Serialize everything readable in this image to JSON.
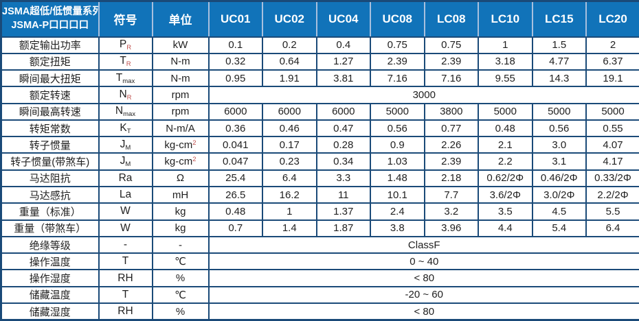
{
  "colors": {
    "header_bg": "#1173b9",
    "header_text": "#ffffff",
    "header_divider": "#a9c0de",
    "grid_border": "#1a4a78",
    "body_text": "#1f1f1f",
    "subscript_red": "#c0504d"
  },
  "table": {
    "header": {
      "series_title_line1": "JSMA超低/低惯量系列",
      "series_title_line2": "JSMA-P口口口口",
      "symbol_col": "符号",
      "unit_col": "单位",
      "models": [
        "UC01",
        "UC02",
        "UC04",
        "UC08",
        "LC08",
        "LC10",
        "LC15",
        "LC20"
      ]
    },
    "rows": [
      {
        "label": "额定输出功率",
        "symbol": {
          "base": "P",
          "sub": "R",
          "sub_red": true
        },
        "unit": "kW",
        "values": [
          "0.1",
          "0.2",
          "0.4",
          "0.75",
          "0.75",
          "1",
          "1.5",
          "2"
        ]
      },
      {
        "label": "额定扭矩",
        "symbol": {
          "base": "T",
          "sub": "R",
          "sub_red": true
        },
        "unit": "N-m",
        "values": [
          "0.32",
          "0.64",
          "1.27",
          "2.39",
          "2.39",
          "3.18",
          "4.77",
          "6.37"
        ]
      },
      {
        "label": "瞬间最大扭矩",
        "symbol": {
          "base": "T",
          "sub": "max"
        },
        "unit": "N-m",
        "values": [
          "0.95",
          "1.91",
          "3.81",
          "7.16",
          "7.16",
          "9.55",
          "14.3",
          "19.1"
        ]
      },
      {
        "label": "额定转速",
        "symbol": {
          "base": "N",
          "sub": "R",
          "sub_red": true
        },
        "unit": "rpm",
        "merged": "3000"
      },
      {
        "label": "瞬间最高转速",
        "symbol": {
          "base": "N",
          "sub": "max"
        },
        "unit": "rpm",
        "values": [
          "6000",
          "6000",
          "6000",
          "5000",
          "3800",
          "5000",
          "5000",
          "5000"
        ]
      },
      {
        "label": "转矩常数",
        "symbol": {
          "base": "K",
          "sub": "T"
        },
        "unit": "N-m/A",
        "values": [
          "0.36",
          "0.46",
          "0.47",
          "0.56",
          "0.77",
          "0.48",
          "0.56",
          "0.55"
        ]
      },
      {
        "label": "转子惯量",
        "symbol": {
          "base": "J",
          "sub": "M"
        },
        "unit": "kg-cm",
        "unit_sup": "2",
        "values": [
          "0.041",
          "0.17",
          "0.28",
          "0.9",
          "2.26",
          "2.1",
          "3.0",
          "4.07"
        ]
      },
      {
        "label": "转子惯量(带煞车)",
        "symbol": {
          "base": "J",
          "sub": "M"
        },
        "unit": "kg-cm",
        "unit_sup": "2",
        "values": [
          "0.047",
          "0.23",
          "0.34",
          "1.03",
          "2.39",
          "2.2",
          "3.1",
          "4.17"
        ]
      },
      {
        "label": "马达阻抗",
        "symbol": {
          "base": "Ra"
        },
        "unit": "Ω",
        "values": [
          "25.4",
          "6.4",
          "3.3",
          "1.48",
          "2.18",
          "0.62/2Φ",
          "0.46/2Φ",
          "0.33/2Φ"
        ]
      },
      {
        "label": "马达感抗",
        "symbol": {
          "base": "La"
        },
        "unit": "mH",
        "values": [
          "26.5",
          "16.2",
          "11",
          "10.1",
          "7.7",
          "3.6/2Φ",
          "3.0/2Φ",
          "2.2/2Φ"
        ]
      },
      {
        "label": "重量（标准）",
        "symbol": {
          "base": "W"
        },
        "unit": "kg",
        "values": [
          "0.48",
          "1",
          "1.37",
          "2.4",
          "3.2",
          "3.5",
          "4.5",
          "5.5"
        ]
      },
      {
        "label": "重量（带煞车）",
        "symbol": {
          "base": "W"
        },
        "unit": "kg",
        "values": [
          "0.7",
          "1.4",
          "1.87",
          "3.8",
          "3.96",
          "4.4",
          "5.4",
          "6.4"
        ]
      },
      {
        "label": "绝缘等级",
        "symbol": {
          "base": "-"
        },
        "unit": "-",
        "merged": "ClassF"
      },
      {
        "label": "操作温度",
        "symbol": {
          "base": "T"
        },
        "unit": "℃",
        "merged": "0 ~ 40"
      },
      {
        "label": "操作湿度",
        "symbol": {
          "base": "RH"
        },
        "unit": "%",
        "merged": "< 80"
      },
      {
        "label": "储藏温度",
        "symbol": {
          "base": "T"
        },
        "unit": "℃",
        "merged": "-20 ~ 60"
      },
      {
        "label": "储藏湿度",
        "symbol": {
          "base": "RH"
        },
        "unit": "%",
        "merged": "< 80"
      }
    ]
  }
}
